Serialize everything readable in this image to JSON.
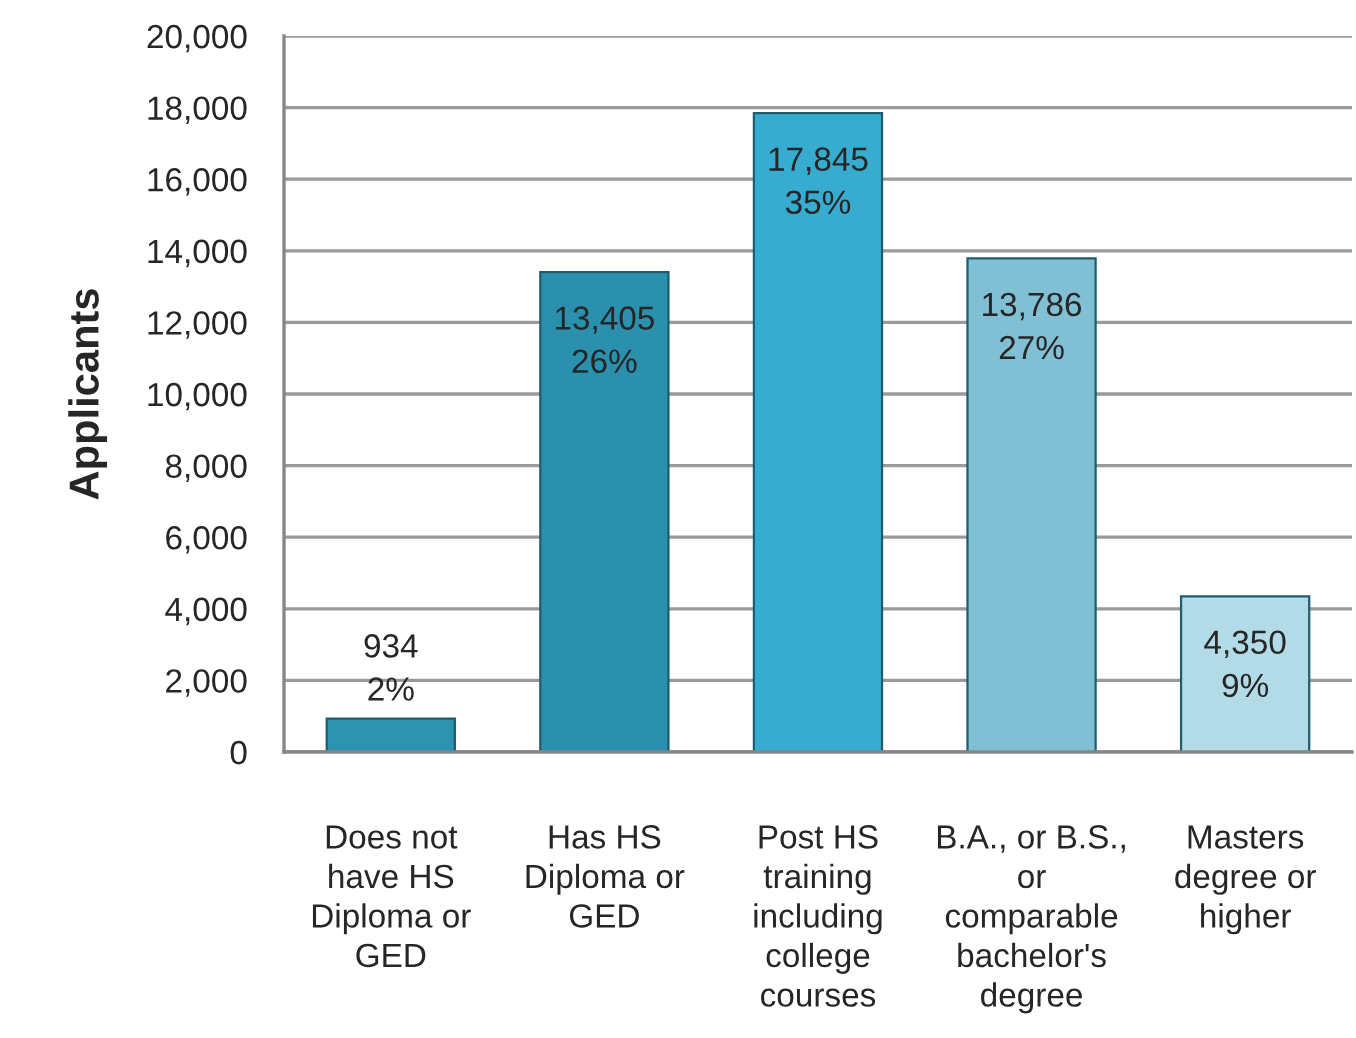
{
  "chart_data": {
    "type": "bar",
    "ylabel": "Applicants",
    "categories": [
      "Does not\nhave HS\nDiploma or\nGED",
      "Has HS\nDiploma or\nGED",
      "Post HS\ntraining\nincluding\ncollege\ncourses",
      "B.A., or B.S.,\nor\ncomparable\nbachelor's\ndegree",
      "Masters\ndegree or\nhigher"
    ],
    "values": [
      934,
      13405,
      17845,
      13786,
      4350
    ],
    "colors": [
      "#2c93b0",
      "#2b90ad",
      "#36acd0",
      "#80bfd4",
      "#b3dae7"
    ],
    "value_labels": [
      "934\n2%",
      "13,405\n26%",
      "17,845\n35%",
      "13,786\n27%",
      "4,350\n9%"
    ],
    "ylim": [
      0,
      20000
    ],
    "yticks": [
      0,
      {
        "value": 2000,
        "label": "2,000"
      },
      {
        "value": 4000,
        "label": "4,000"
      },
      {
        "value": 6000,
        "label": "6,000"
      },
      {
        "value": 8000,
        "label": "8,000"
      },
      {
        "value": 10000,
        "label": "10,000"
      },
      {
        "value": 12000,
        "label": "12,000"
      },
      {
        "value": 14000,
        "label": "14,000"
      },
      {
        "value": 16000,
        "label": "16,000"
      },
      {
        "value": 18000,
        "label": "18,000"
      },
      {
        "value": 20000,
        "label": "20,000"
      }
    ],
    "grid": "y"
  }
}
